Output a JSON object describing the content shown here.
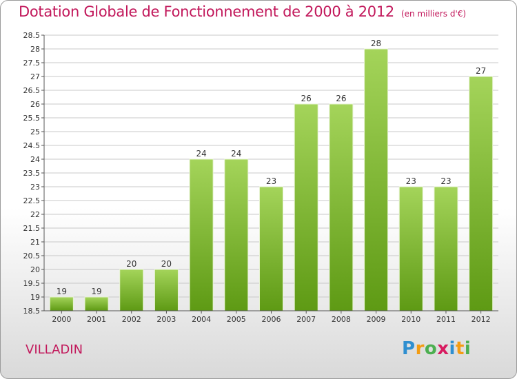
{
  "header": {
    "title": "Dotation Globale de Fonctionnement de 2000 à 2012",
    "unit": "(en milliers d'€)"
  },
  "commune": "VILLADIN",
  "logo": {
    "text": "Proxiti",
    "letters": [
      "P",
      "r",
      "o",
      "x",
      "i",
      "t",
      "i"
    ],
    "colors": [
      "#2f8fd0",
      "#f39c12",
      "#4caf50",
      "#d81b60",
      "#2f8fd0",
      "#f39c12",
      "#4caf50"
    ]
  },
  "chart_data": {
    "type": "bar",
    "title": "Dotation Globale de Fonctionnement de 2000 à 2012",
    "subtitle": "(en milliers d'€)",
    "xlabel": "",
    "ylabel": "",
    "categories": [
      "2000",
      "2001",
      "2002",
      "2003",
      "2004",
      "2005",
      "2006",
      "2007",
      "2008",
      "2009",
      "2010",
      "2011",
      "2012"
    ],
    "values": [
      19,
      19,
      20,
      20,
      24,
      24,
      23,
      26,
      26,
      28,
      23,
      23,
      27
    ],
    "ylim": [
      18.5,
      28.5
    ],
    "yticks": [
      "18.5",
      "19",
      "19.5",
      "20",
      "20.5",
      "21",
      "21.5",
      "22",
      "22.5",
      "23",
      "23.5",
      "24",
      "24.5",
      "25",
      "25.5",
      "26",
      "26.5",
      "27",
      "27.5",
      "28",
      "28.5"
    ],
    "grid": true,
    "colors": {
      "bar_light": "#a4d45a",
      "bar_dark": "#5e9a14",
      "grid": "#c8c8c8",
      "text": "#333333",
      "accent": "#c2185b"
    }
  }
}
